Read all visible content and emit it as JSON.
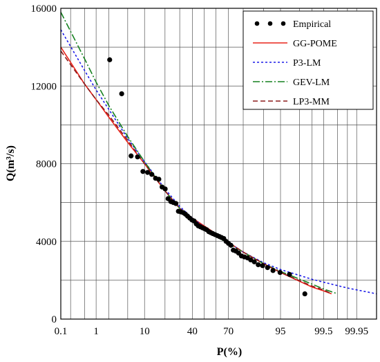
{
  "chart_data": {
    "type": "line",
    "title": "",
    "xlabel": "P(%)",
    "ylabel": "Q(m³/s)",
    "x_scale": "normal-probability",
    "xlim": [
      0.1,
      99.99
    ],
    "ylim": [
      0,
      16000
    ],
    "grid": true,
    "legend_position": "top-right",
    "x_ticks": [
      0.1,
      1,
      10,
      40,
      70,
      95,
      99.5,
      99.95
    ],
    "x_tick_labels": [
      "0.1",
      "1",
      "10",
      "40",
      "70",
      "95",
      "99.5",
      "99.95"
    ],
    "x_gridlines": [
      0.1,
      0.2,
      0.5,
      1,
      2,
      5,
      10,
      20,
      30,
      40,
      50,
      60,
      70,
      80,
      90,
      95,
      98,
      99,
      99.5,
      99.8,
      99.9,
      99.95
    ],
    "y_ticks": [
      0,
      4000,
      8000,
      12000,
      16000
    ],
    "y_tick_labels": [
      "0",
      "4000",
      "8000",
      "12000",
      "16000"
    ],
    "y_gridlines": [
      0,
      2000,
      4000,
      6000,
      8000,
      10000,
      12000,
      14000,
      16000
    ],
    "empirical": {
      "name": "Empirical",
      "color": "#000000",
      "x": [
        2.1,
        3.8,
        5.8,
        7.6,
        9.4,
        11.2,
        13,
        14.8,
        16.5,
        18.3,
        20.1,
        21.9,
        23.7,
        25.4,
        27.2,
        29,
        30.8,
        32.6,
        34.4,
        36.1,
        37.9,
        39.7,
        41.5,
        43.3,
        45,
        46.8,
        48.6,
        50.4,
        52.2,
        54,
        55.7,
        57.5,
        59.3,
        61.1,
        62.9,
        64.6,
        66.4,
        68.2,
        70,
        71.8,
        73.5,
        75.3,
        77.1,
        78.9,
        80.7,
        82.5,
        84.2,
        86,
        87.8,
        89.6,
        91.4,
        93.1,
        94.9,
        96.7,
        98.5
      ],
      "y": [
        13350,
        11600,
        8400,
        8350,
        7600,
        7550,
        7450,
        7250,
        7200,
        6800,
        6700,
        6200,
        6050,
        6000,
        5950,
        5550,
        5520,
        5480,
        5400,
        5300,
        5200,
        5100,
        5050,
        4900,
        4800,
        4750,
        4700,
        4650,
        4600,
        4500,
        4450,
        4400,
        4350,
        4300,
        4250,
        4200,
        4150,
        4000,
        3900,
        3800,
        3550,
        3500,
        3400,
        3250,
        3200,
        3150,
        3050,
        2950,
        2800,
        2750,
        2650,
        2500,
        2400,
        2300,
        1300
      ]
    },
    "series": [
      {
        "name": "GG-POME",
        "color": "#e8231a",
        "dash": "",
        "x": [
          0.1,
          0.5,
          1,
          2,
          5,
          10,
          20,
          30,
          40,
          50,
          60,
          70,
          80,
          90,
          95,
          99,
          99.5,
          99.7
        ],
        "y": [
          14000,
          12100,
          11300,
          10400,
          9100,
          8000,
          6600,
          5700,
          5200,
          4800,
          4400,
          3950,
          3450,
          2850,
          2400,
          1650,
          1450,
          1300
        ]
      },
      {
        "name": "P3-LM",
        "color": "#1a1ae8",
        "dash": "3,3",
        "x": [
          0.1,
          0.5,
          1,
          2,
          5,
          10,
          20,
          30,
          40,
          50,
          60,
          70,
          80,
          90,
          95,
          99,
          99.5,
          99.9,
          99.99
        ],
        "y": [
          14900,
          12800,
          11800,
          10800,
          9300,
          8100,
          6700,
          5800,
          5200,
          4750,
          4350,
          3950,
          3450,
          2900,
          2550,
          2050,
          1900,
          1600,
          1300
        ]
      },
      {
        "name": "GEV-LM",
        "color": "#14801e",
        "dash": "10,3,2,3",
        "x": [
          0.1,
          0.5,
          1,
          2,
          5,
          10,
          20,
          30,
          40,
          50,
          60,
          70,
          80,
          90,
          95,
          99,
          99.5,
          99.8
        ],
        "y": [
          15800,
          13400,
          12200,
          11000,
          9400,
          8100,
          6600,
          5700,
          5100,
          4650,
          4250,
          3900,
          3450,
          2850,
          2450,
          1800,
          1550,
          1300
        ]
      },
      {
        "name": "LP3-MM",
        "color": "#8b1a1a",
        "dash": "7,4",
        "x": [
          0.1,
          0.5,
          1,
          2,
          5,
          10,
          20,
          30,
          40,
          50,
          60,
          70,
          80,
          90,
          95,
          99,
          99.5,
          99.7
        ],
        "y": [
          13800,
          12100,
          11300,
          10500,
          9200,
          8000,
          6600,
          5700,
          5150,
          4750,
          4350,
          3950,
          3450,
          2850,
          2400,
          1700,
          1500,
          1300
        ]
      }
    ]
  }
}
